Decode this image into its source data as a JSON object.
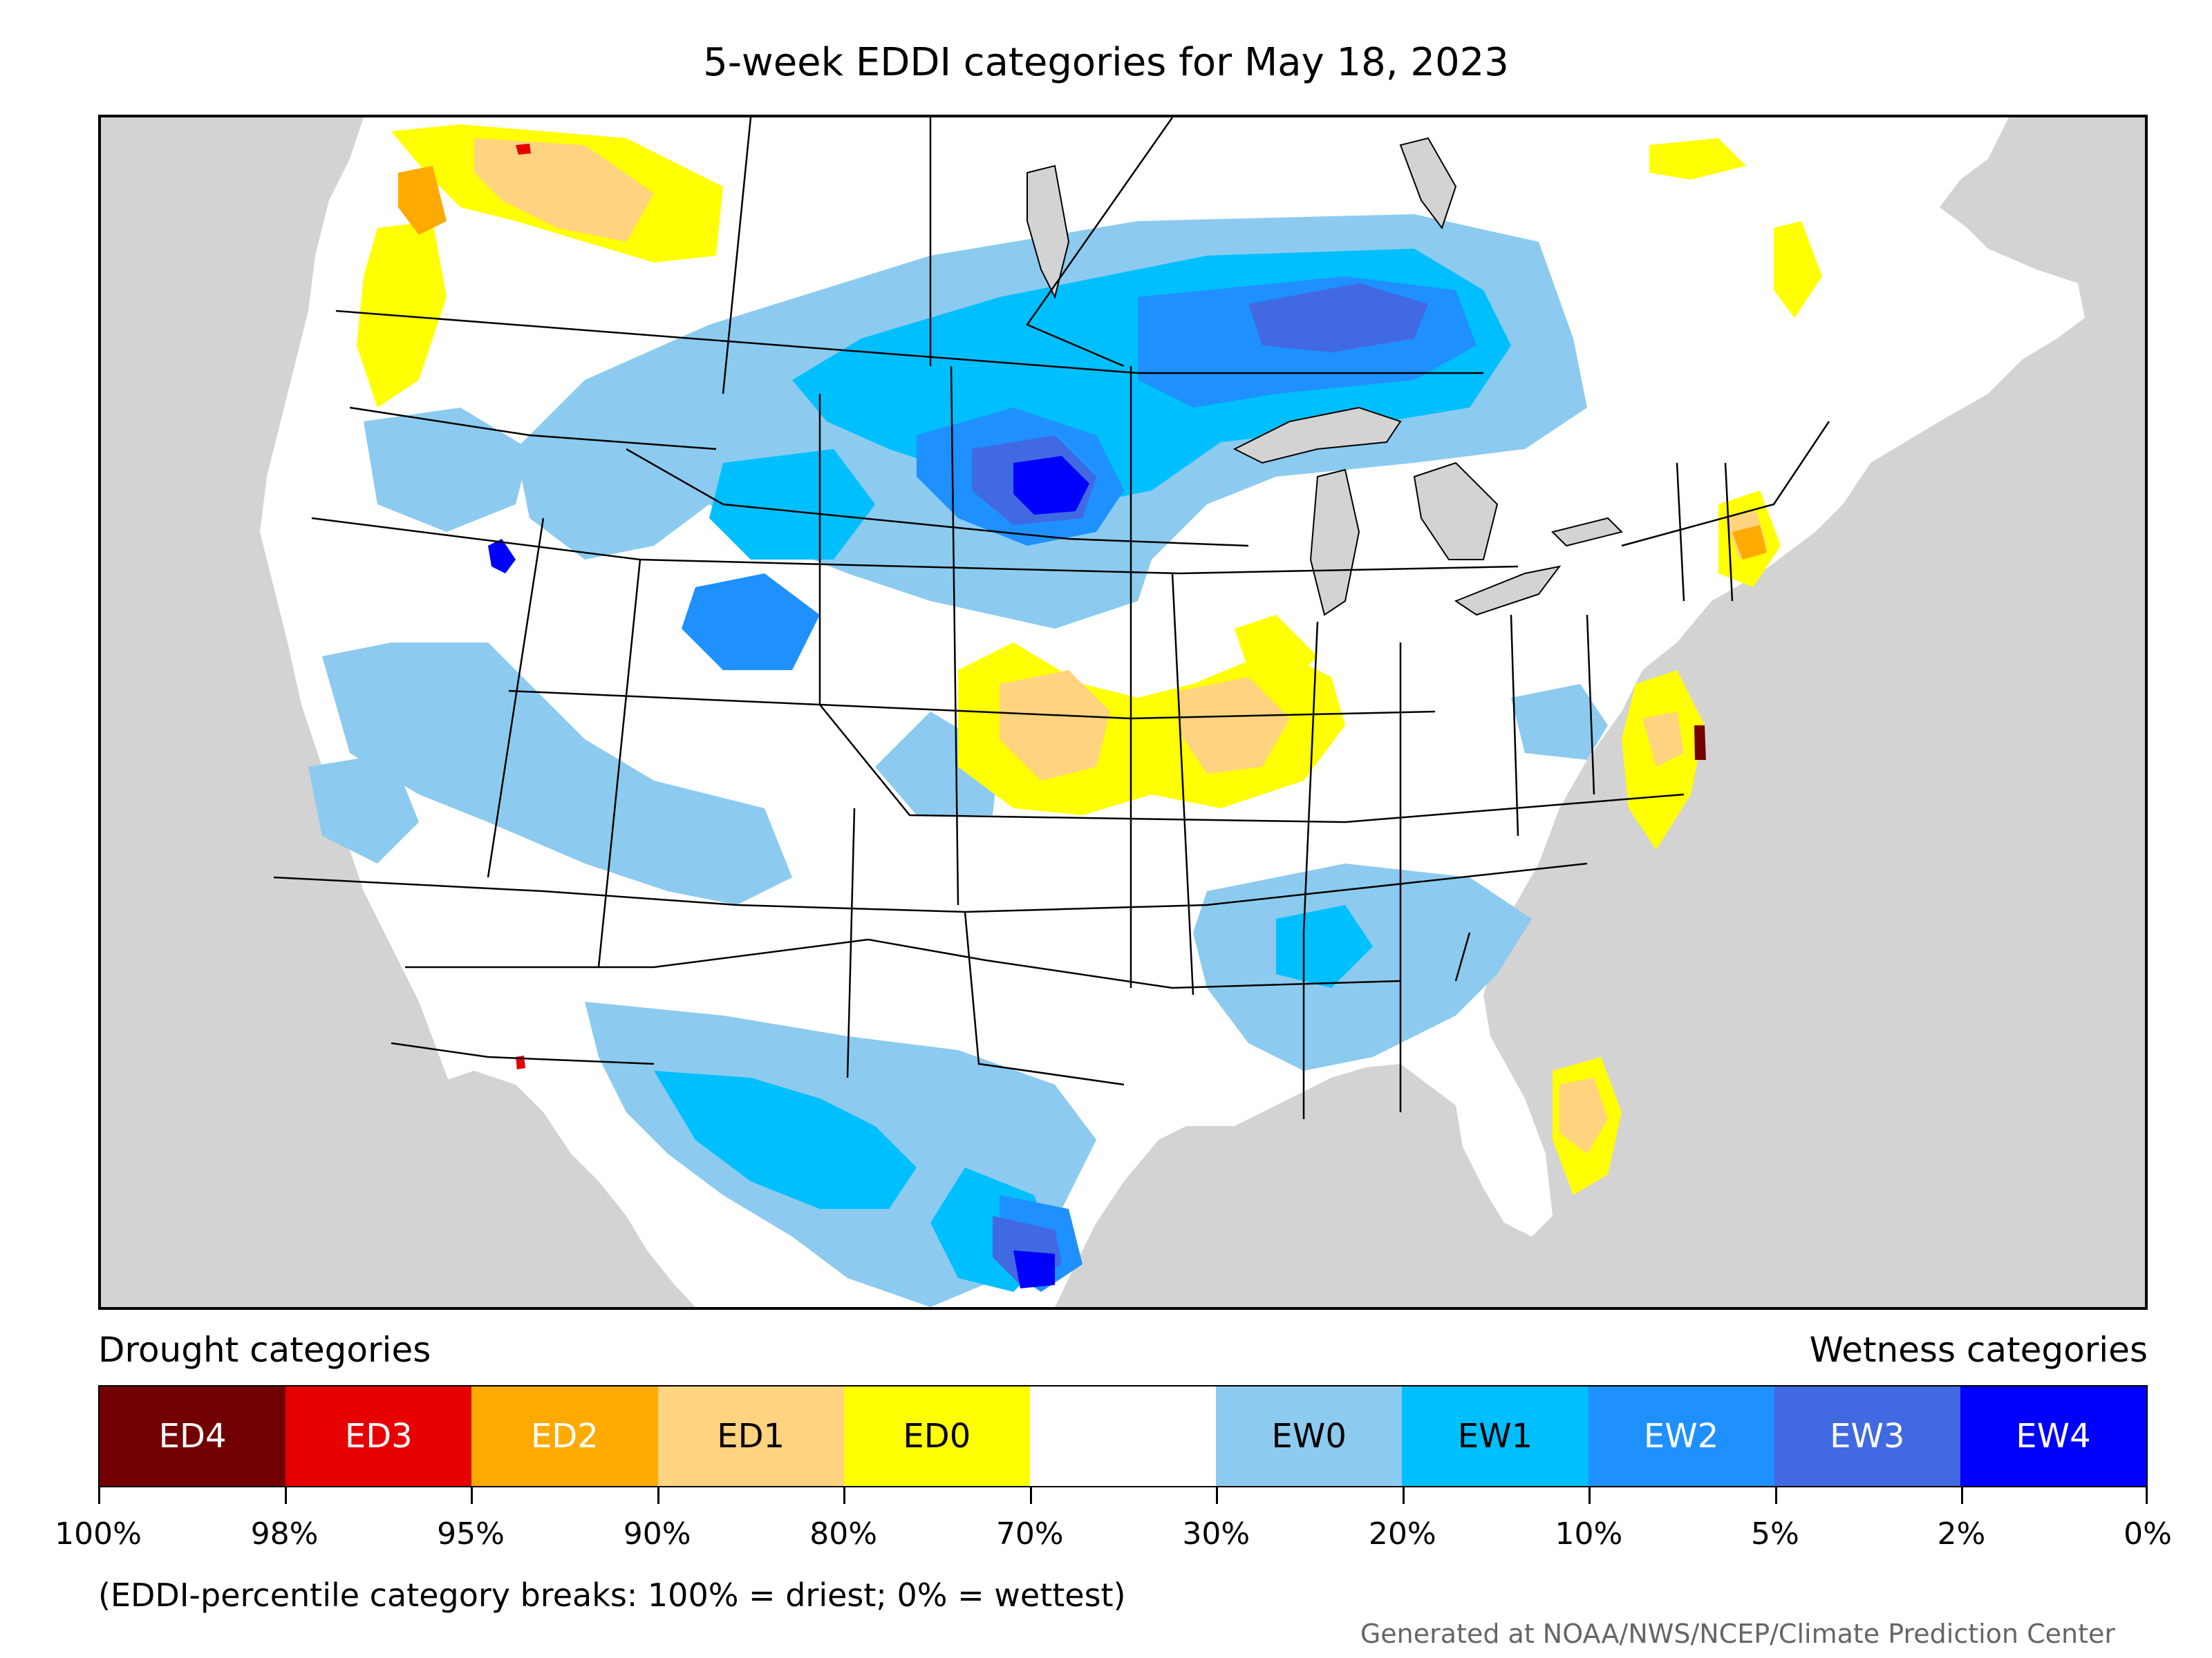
{
  "title": "5-week EDDI categories for May 18, 2023",
  "legend": {
    "drought_heading": "Drought categories",
    "wetness_heading": "Wetness categories",
    "categories": [
      {
        "label": "ED4",
        "color": "#730000",
        "text_color": "#ffffff"
      },
      {
        "label": "ED3",
        "color": "#e60000",
        "text_color": "#ffffff"
      },
      {
        "label": "ED2",
        "color": "#ffaa00",
        "text_color": "#ffffff"
      },
      {
        "label": "ED1",
        "color": "#ffd37f",
        "text_color": "#000000"
      },
      {
        "label": "ED0",
        "color": "#ffff00",
        "text_color": "#000000"
      },
      {
        "label": "",
        "color": "#ffffff",
        "text_color": "#000000"
      },
      {
        "label": "EW0",
        "color": "#8ccbef",
        "text_color": "#000000"
      },
      {
        "label": "EW1",
        "color": "#00bfff",
        "text_color": "#000000"
      },
      {
        "label": "EW2",
        "color": "#1e90ff",
        "text_color": "#ffffff"
      },
      {
        "label": "EW3",
        "color": "#4169e1",
        "text_color": "#ffffff"
      },
      {
        "label": "EW4",
        "color": "#0000ff",
        "text_color": "#ffffff"
      }
    ],
    "breaks": [
      "100%",
      "98%",
      "95%",
      "90%",
      "80%",
      "70%",
      "30%",
      "20%",
      "10%",
      "5%",
      "2%",
      "0%"
    ],
    "note": "(EDDI-percentile category breaks: 100% = driest; 0% = wettest)"
  },
  "credit": "Generated at NOAA/NWS/NCEP/Climate Prediction Center",
  "map": {
    "background": "#d3d3d3",
    "land": "#ffffff",
    "border": "#000000"
  }
}
